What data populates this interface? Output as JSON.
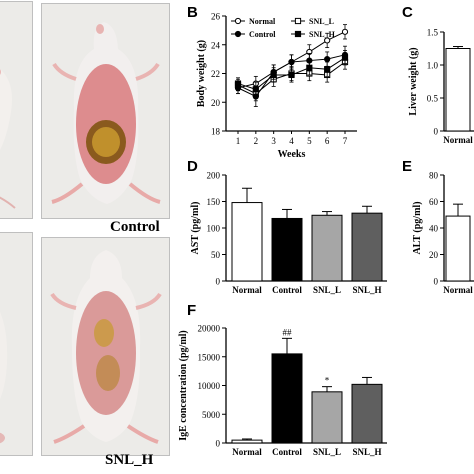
{
  "photos": {
    "control_caption": "Control",
    "snl_h_caption": "SNL_H"
  },
  "panel_labels": {
    "b": "B",
    "c": "C",
    "d": "D",
    "e": "E",
    "f": "F"
  },
  "colors": {
    "axis": "#000000",
    "normal_fill": "#ffffff",
    "control_fill": "#000000",
    "snl_l_fill": "#a6a6a6",
    "snl_h_fill": "#5f5f5f"
  },
  "chart_data": [
    {
      "id": "B",
      "type": "line",
      "x": [
        1,
        2,
        3,
        4,
        5,
        6,
        7
      ],
      "xlabel": "Weeks",
      "ylabel": "Body weight (g)",
      "ylim": [
        18,
        26
      ],
      "yticks": [
        18,
        20,
        22,
        24,
        26
      ],
      "xticks": [
        1,
        2,
        3,
        4,
        5,
        6,
        7
      ],
      "legend_position": "top",
      "series": [
        {
          "name": "Normal",
          "marker": "open-circle",
          "values": [
            21.0,
            21.3,
            22.1,
            22.8,
            23.5,
            24.3,
            24.9
          ],
          "errors": [
            0.4,
            0.5,
            0.5,
            0.5,
            0.5,
            0.5,
            0.5
          ]
        },
        {
          "name": "SNL_L",
          "marker": "open-square",
          "values": [
            21.2,
            20.6,
            21.6,
            22.0,
            22.0,
            21.9,
            22.8
          ],
          "errors": [
            0.4,
            0.5,
            0.5,
            0.5,
            0.5,
            0.5,
            0.5
          ]
        },
        {
          "name": "Control",
          "marker": "filled-circle",
          "values": [
            21.0,
            20.4,
            22.1,
            22.8,
            22.9,
            23.0,
            23.3
          ],
          "errors": [
            0.4,
            0.7,
            0.5,
            0.5,
            0.5,
            0.5,
            0.6
          ]
        },
        {
          "name": "SNL_H",
          "marker": "filled-square",
          "values": [
            21.3,
            20.9,
            21.9,
            21.9,
            22.4,
            22.3,
            23.1
          ],
          "errors": [
            0.4,
            0.5,
            0.5,
            0.5,
            0.5,
            0.5,
            0.5
          ]
        }
      ]
    },
    {
      "id": "C",
      "type": "bar",
      "ylabel": "Liver weight (g)",
      "ylim": [
        0,
        1.5
      ],
      "yticks": [
        0,
        0.5,
        1.0,
        1.5
      ],
      "categories": [
        "Normal"
      ],
      "values": [
        1.25
      ],
      "errors": [
        0.03
      ]
    },
    {
      "id": "D",
      "type": "bar",
      "ylabel": "AST (pg/ml)",
      "ylim": [
        0,
        200
      ],
      "yticks": [
        0,
        50,
        100,
        150,
        200
      ],
      "categories": [
        "Normal",
        "Control",
        "SNL_L",
        "SNL_H"
      ],
      "values": [
        148,
        118,
        124,
        128
      ],
      "errors": [
        27,
        17,
        7,
        13
      ]
    },
    {
      "id": "E",
      "type": "bar",
      "ylabel": "ALT (pg/ml)",
      "ylim": [
        0,
        80
      ],
      "yticks": [
        0,
        20,
        40,
        60,
        80
      ],
      "categories": [
        "Normal"
      ],
      "values": [
        49
      ],
      "errors": [
        9
      ]
    },
    {
      "id": "F",
      "type": "bar",
      "ylabel": "IgE concentration (pg/ml)",
      "ylim": [
        0,
        20000
      ],
      "yticks": [
        0,
        5000,
        10000,
        15000,
        20000
      ],
      "categories": [
        "Normal",
        "Control",
        "SNL_L",
        "SNL_H"
      ],
      "values": [
        500,
        15500,
        8900,
        10200
      ],
      "errors": [
        200,
        2700,
        900,
        1200
      ],
      "annotations": [
        "",
        "##",
        "*",
        ""
      ]
    }
  ]
}
